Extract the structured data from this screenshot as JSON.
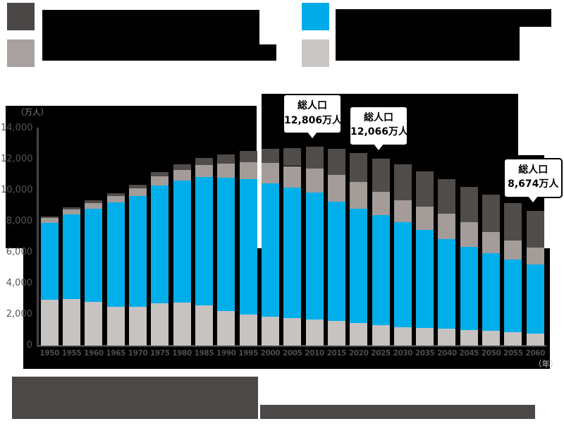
{
  "chart_data": {
    "type": "bar",
    "stacked": true,
    "title": "",
    "y_unit_label": "（万人）",
    "x_unit_label": "（年）",
    "ylim": [
      0,
      14000
    ],
    "grid": false,
    "plot_background": "#000000",
    "legend_position": "top",
    "categories": [
      "1950",
      "1955",
      "1960",
      "1965",
      "1970",
      "1975",
      "1980",
      "1985",
      "1990",
      "1995",
      "2000",
      "2005",
      "2010",
      "2015",
      "2020",
      "2025",
      "2030",
      "2035",
      "2040",
      "2045",
      "2050",
      "2055",
      "2060"
    ],
    "series": [
      {
        "name": "bottom segment (light gray)",
        "color": "#c7c3c1",
        "values": [
          2943,
          2980,
          2807,
          2517,
          2482,
          2722,
          2751,
          2603,
          2249,
          2001,
          1847,
          1752,
          1684,
          1583,
          1457,
          1324,
          1204,
          1129,
          1073,
          1012,
          939,
          861,
          791
        ]
      },
      {
        "name": "second segment (blue)",
        "color": "#00aeea",
        "values": [
          4966,
          5473,
          6000,
          6693,
          7157,
          7581,
          7883,
          8251,
          8590,
          8716,
          8622,
          8409,
          8174,
          7682,
          7341,
          7085,
          6773,
          6343,
          5787,
          5353,
          5001,
          4706,
          4418
        ]
      },
      {
        "name": "third segment (warm gray)",
        "color": "#a49c99",
        "values": [
          309,
          338,
          372,
          434,
          516,
          602,
          699,
          776,
          892,
          1109,
          1301,
          1407,
          1529,
          1749,
          1733,
          1479,
          1407,
          1495,
          1645,
          1600,
          1383,
          1225,
          1128
        ]
      },
      {
        "name": "top segment (dark gray)",
        "color": "#504c4a",
        "values": [
          107,
          139,
          163,
          184,
          216,
          285,
          366,
          471,
          597,
          717,
          900,
          1160,
          1419,
          1646,
          1879,
          2179,
          2278,
          2245,
          2223,
          2257,
          2385,
          2401,
          2336
        ]
      }
    ],
    "yticks": [
      {
        "value": 0,
        "label": "0"
      },
      {
        "value": 2000,
        "label": "2,000"
      },
      {
        "value": 4000,
        "label": "4,000"
      },
      {
        "value": 6000,
        "label": "6,000"
      },
      {
        "value": 8000,
        "label": "8,000"
      },
      {
        "value": 10000,
        "label": "10,000"
      },
      {
        "value": 12000,
        "label": "12,000"
      },
      {
        "value": 14000,
        "label": "14,000"
      }
    ],
    "annotations": [
      {
        "line1": "総人口",
        "line2": "12,806万人",
        "target_year": "2010"
      },
      {
        "line1": "総人口",
        "line2": "12,066万人",
        "target_year": "2025"
      },
      {
        "line1": "総人口",
        "line2": "8,674万人",
        "target_year": "2060"
      }
    ]
  },
  "legend": {
    "items": [
      {
        "swatch_color": "#4b4746",
        "label": "",
        "redacted": true
      },
      {
        "swatch_color": "#a9a19f",
        "label": "",
        "redacted": true
      },
      {
        "swatch_color": "#00ace8",
        "label": "",
        "redacted": true
      },
      {
        "swatch_color": "#c9c6c3",
        "label": "",
        "redacted": true
      }
    ]
  },
  "footer": {
    "blocks": [
      {
        "label": "",
        "redacted": true
      },
      {
        "label": "",
        "redacted": true
      }
    ]
  }
}
